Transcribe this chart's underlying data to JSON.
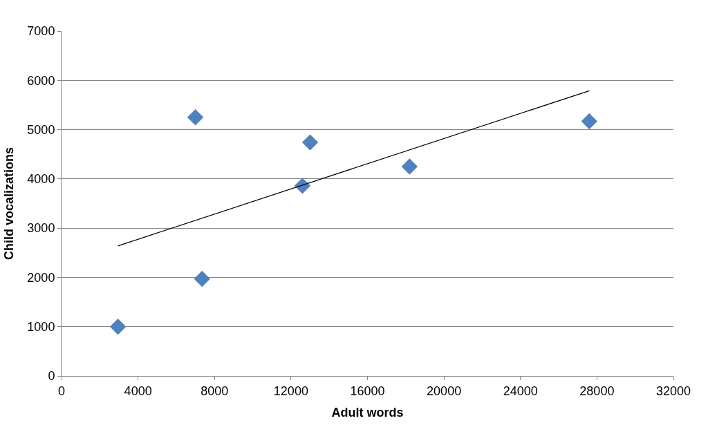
{
  "chart_data": {
    "type": "scatter",
    "xlabel": "Adult words",
    "ylabel": "Child vocalizations",
    "series": [
      {
        "color": "#4f81bd",
        "marker": "diamond",
        "x": [
          2950,
          7000,
          7350,
          12600,
          13000,
          18200,
          27600
        ],
        "values": [
          1000,
          5250,
          1970,
          3860,
          4740,
          4250,
          5170
        ]
      },
      {
        "type": "line",
        "color": "#000000",
        "marker": "none",
        "line_style": "solid",
        "x": [
          2950,
          27600
        ],
        "values": [
          2640,
          5790
        ]
      }
    ],
    "xlim": [
      0,
      32000
    ],
    "xticks": [
      0,
      4000,
      8000,
      12000,
      16000,
      20000,
      24000,
      28000,
      32000
    ],
    "ylim": [
      0,
      7000
    ],
    "yticks": [
      0,
      1000,
      2000,
      3000,
      4000,
      5000,
      6000,
      7000
    ],
    "grid": "y"
  }
}
